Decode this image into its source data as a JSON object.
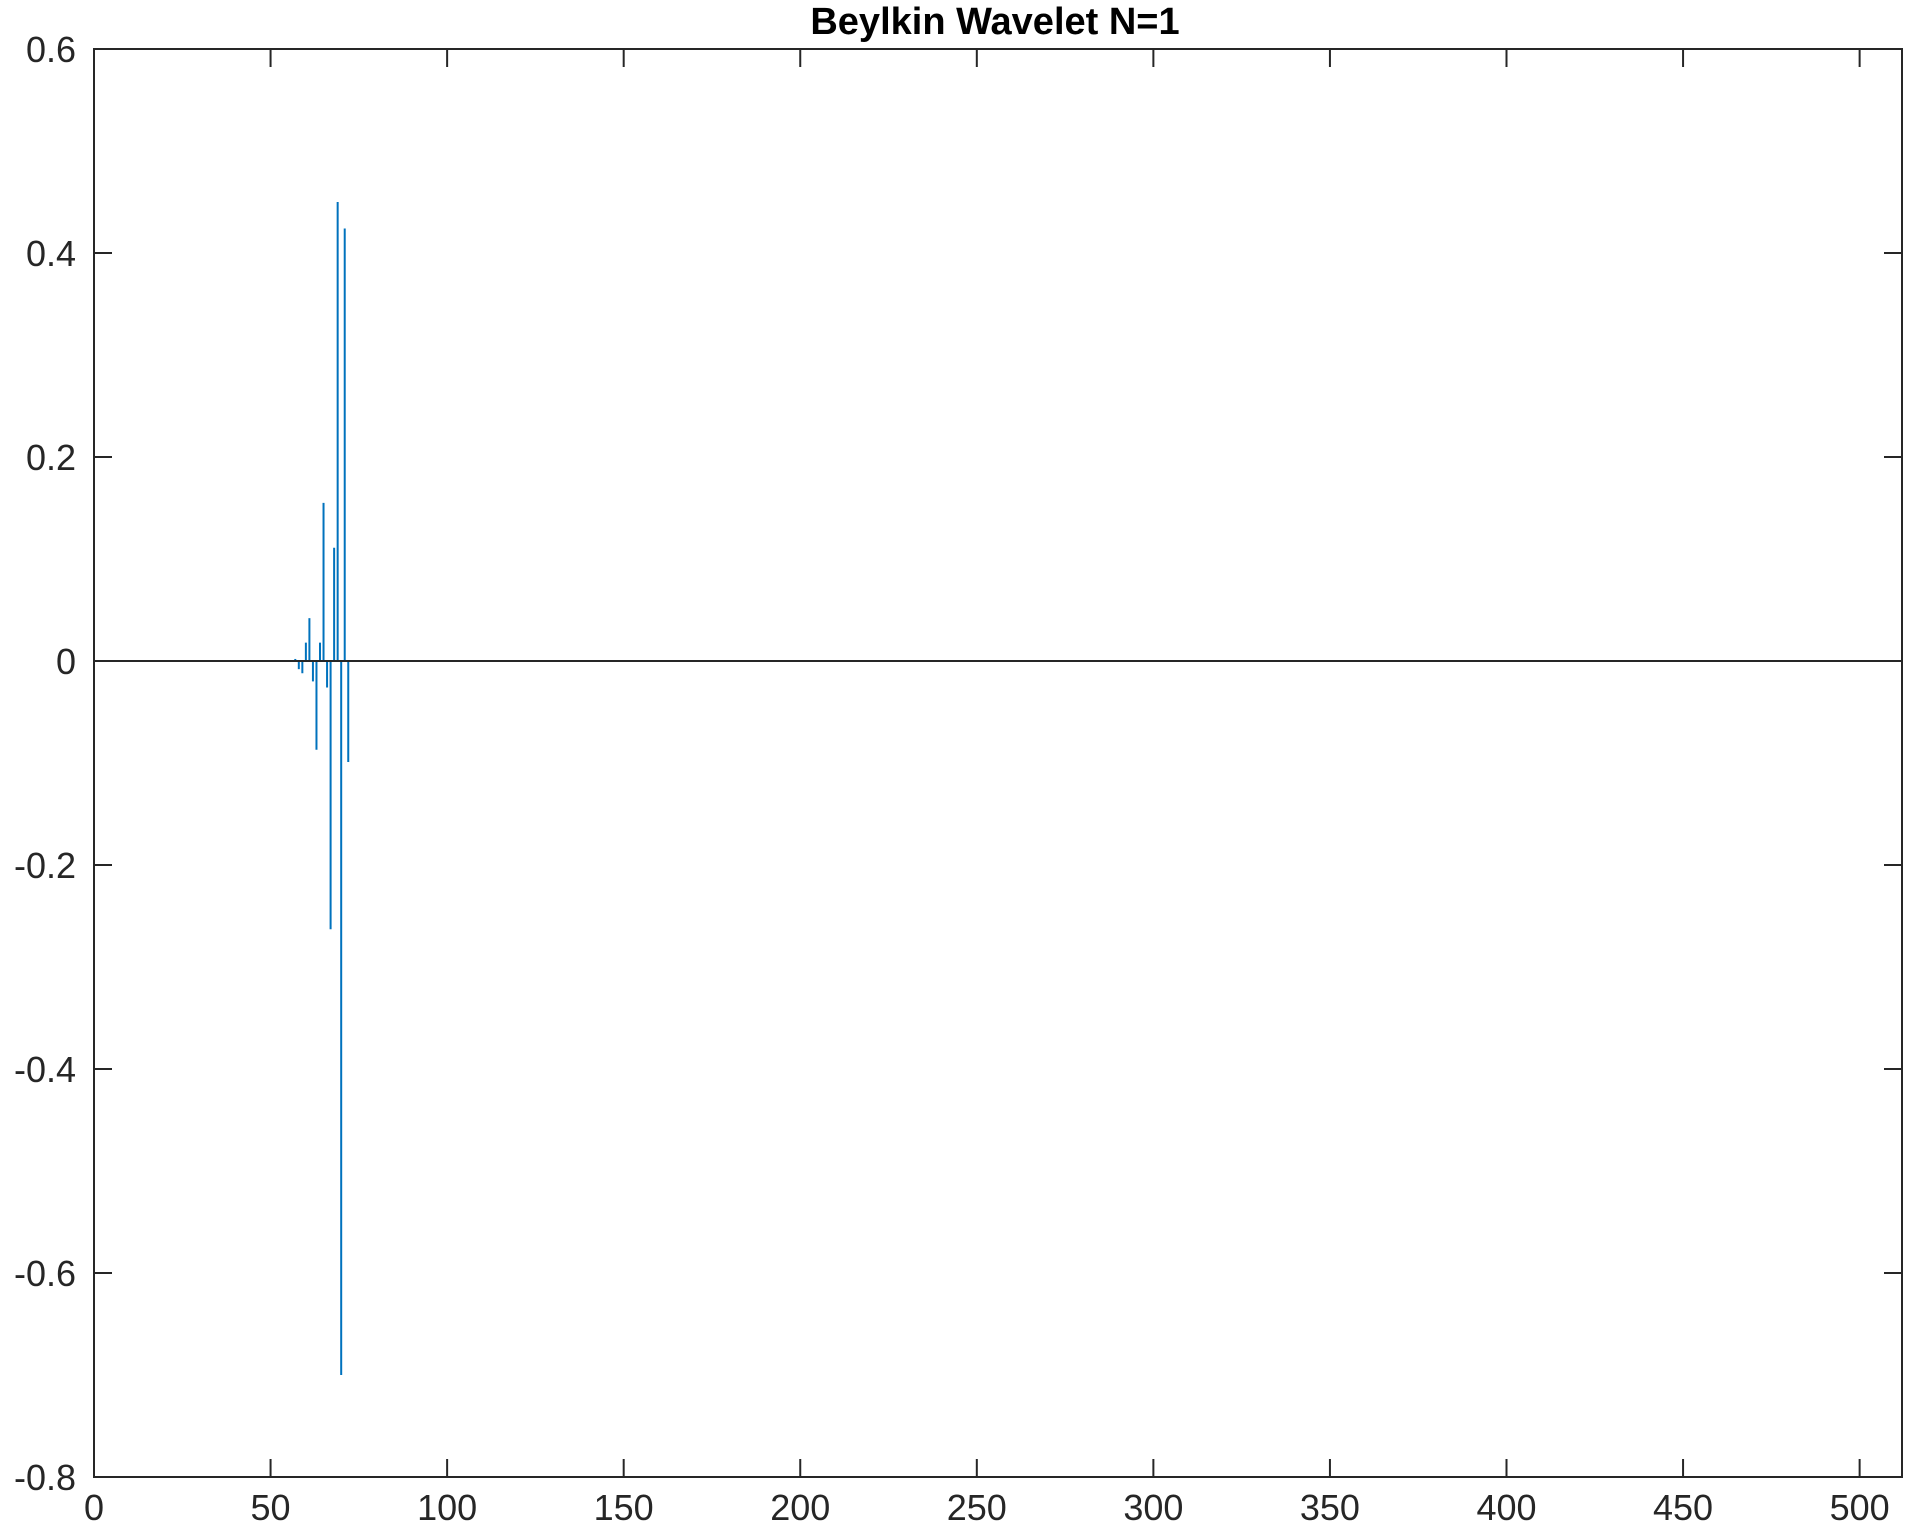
{
  "chart_data": {
    "type": "line",
    "plot_style": "stem-like vertical lines from zero baseline",
    "title": "Beylkin Wavelet N=1",
    "xlabel": "",
    "ylabel": "",
    "xlim": [
      0,
      512
    ],
    "ylim": [
      -0.8,
      0.6
    ],
    "xticks": [
      0,
      50,
      100,
      150,
      200,
      250,
      300,
      350,
      400,
      450,
      500
    ],
    "yticks": [
      0.6,
      0.4,
      0.2,
      0,
      -0.2,
      -0.4,
      -0.6,
      -0.8
    ],
    "xtick_labels": [
      "0",
      "50",
      "100",
      "150",
      "200",
      "250",
      "300",
      "350",
      "400",
      "450",
      "500"
    ],
    "ytick_labels": [
      "0.6",
      "0.4",
      "0.2",
      "0",
      "-0.2",
      "-0.4",
      "-0.6",
      "-0.8"
    ],
    "grid": false,
    "baseline": 0,
    "colors": {
      "series": "#0072BD",
      "axes": "#262626",
      "baseline": "#262626"
    },
    "series": [
      {
        "x": [
          57,
          58,
          59,
          60,
          61,
          62,
          63,
          64,
          65,
          66,
          67,
          68,
          69,
          70,
          71,
          72
        ],
        "values": [
          0.002,
          -0.008,
          -0.012,
          0.018,
          0.042,
          -0.02,
          -0.087,
          0.018,
          0.155,
          -0.026,
          -0.263,
          0.111,
          0.45,
          -0.7,
          0.424,
          -0.099
        ]
      }
    ]
  }
}
